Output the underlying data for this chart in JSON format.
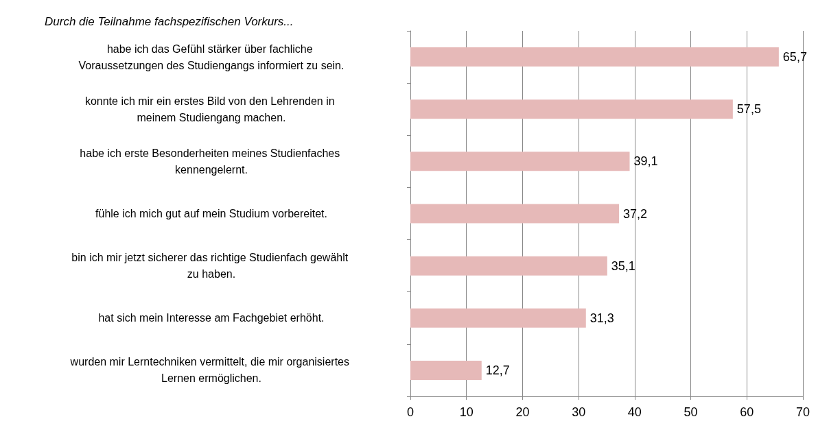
{
  "chart_data": {
    "type": "bar",
    "orientation": "horizontal",
    "title": "Durch die Teilnahme fachspezifischen Vorkurs...",
    "categories": [
      "habe ich das Gefühl stärker über fachliche Voraussetzungen des Studiengangs informiert zu sein.",
      "konnte ich mir ein erstes Bild von den Lehrenden in meinem Studiengang machen.",
      "habe ich erste Besonderheiten meines Studienfaches kennengelernt.",
      "fühle ich mich gut auf mein Studium vorbereitet.",
      "bin ich mir jetzt sicherer das richtige Studienfach gewählt zu haben.",
      "hat sich mein Interesse am Fachgebiet erhöht.",
      "wurden mir Lerntechniken vermittelt, die mir organisiertes Lernen ermöglichen."
    ],
    "values": [
      65.7,
      57.5,
      39.1,
      37.2,
      35.1,
      31.3,
      12.7
    ],
    "value_labels": [
      "65,7",
      "57,5",
      "39,1",
      "37,2",
      "35,1",
      "31,3",
      "12,7"
    ],
    "color": "#e6b9b8",
    "xlim": [
      0,
      70
    ],
    "xticks": [
      0,
      10,
      20,
      30,
      40,
      50,
      60,
      70
    ],
    "grid": "x"
  }
}
